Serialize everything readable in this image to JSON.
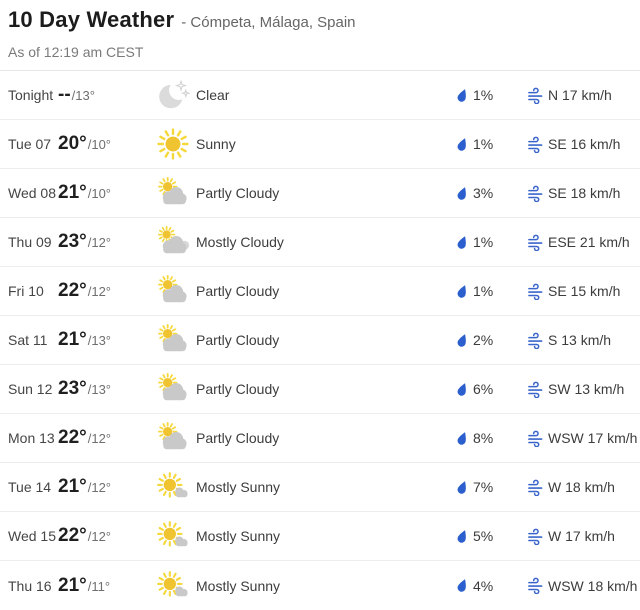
{
  "header": {
    "title": "10 Day Weather",
    "location": "- Cómpeta, Málaga, Spain",
    "as_of": "As of 12:19 am CEST"
  },
  "colors": {
    "accent_blue": "#2b5fce",
    "sun_yellow_core": "#f0c330",
    "sun_yellow_rays": "#f5d83b",
    "cloud_gray": "#c9c9c9",
    "moon_gray": "#dbdbdb",
    "divider_gray": "#ededed",
    "title_text": "#1c1c1c",
    "muted_text": "#6f6f6f"
  },
  "units": {
    "wind": "km/h",
    "precipitation": "%"
  },
  "rows": [
    {
      "day": "Tonight",
      "hi": "--",
      "lo": "/13°",
      "icon": "clear-night-icon",
      "condition": "Clear",
      "precip": "1%",
      "wind": "N 17 km/h"
    },
    {
      "day": "Tue 07",
      "hi": "20°",
      "lo": "/10°",
      "icon": "sunny-icon",
      "condition": "Sunny",
      "precip": "1%",
      "wind": "SE 16 km/h"
    },
    {
      "day": "Wed 08",
      "hi": "21°",
      "lo": "/10°",
      "icon": "partly-cloudy-icon",
      "condition": "Partly Cloudy",
      "precip": "3%",
      "wind": "SE 18 km/h"
    },
    {
      "day": "Thu 09",
      "hi": "23°",
      "lo": "/12°",
      "icon": "mostly-cloudy-icon",
      "condition": "Mostly Cloudy",
      "precip": "1%",
      "wind": "ESE 21 km/h"
    },
    {
      "day": "Fri 10",
      "hi": "22°",
      "lo": "/12°",
      "icon": "partly-cloudy-icon",
      "condition": "Partly Cloudy",
      "precip": "1%",
      "wind": "SE 15 km/h"
    },
    {
      "day": "Sat 11",
      "hi": "21°",
      "lo": "/13°",
      "icon": "partly-cloudy-icon",
      "condition": "Partly Cloudy",
      "precip": "2%",
      "wind": "S 13 km/h"
    },
    {
      "day": "Sun 12",
      "hi": "23°",
      "lo": "/13°",
      "icon": "partly-cloudy-icon",
      "condition": "Partly Cloudy",
      "precip": "6%",
      "wind": "SW 13 km/h"
    },
    {
      "day": "Mon 13",
      "hi": "22°",
      "lo": "/12°",
      "icon": "partly-cloudy-icon",
      "condition": "Partly Cloudy",
      "precip": "8%",
      "wind": "WSW 17 km/h"
    },
    {
      "day": "Tue 14",
      "hi": "21°",
      "lo": "/12°",
      "icon": "mostly-sunny-icon",
      "condition": "Mostly Sunny",
      "precip": "7%",
      "wind": "W 18 km/h"
    },
    {
      "day": "Wed 15",
      "hi": "22°",
      "lo": "/12°",
      "icon": "mostly-sunny-icon",
      "condition": "Mostly Sunny",
      "precip": "5%",
      "wind": "W 17 km/h"
    },
    {
      "day": "Thu 16",
      "hi": "21°",
      "lo": "/11°",
      "icon": "mostly-sunny-icon",
      "condition": "Mostly Sunny",
      "precip": "4%",
      "wind": "WSW 18 km/h"
    }
  ]
}
